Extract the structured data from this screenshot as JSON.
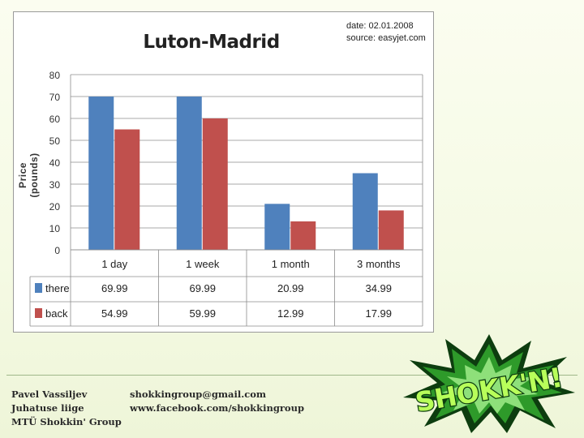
{
  "chart_data": {
    "type": "bar",
    "title": "Luton-Madrid",
    "date_label": "date: 02.01.2008",
    "source_label": "source: easyjet.com",
    "ylabel": "Price (pounds)",
    "xlabel": "",
    "ylim": [
      0,
      80
    ],
    "yticks": [
      0,
      10,
      20,
      30,
      40,
      50,
      60,
      70,
      80
    ],
    "grid": true,
    "categories": [
      "1 day",
      "1 week",
      "1 month",
      "3 months"
    ],
    "series": [
      {
        "name": "there",
        "color": "#4f81bd",
        "values": [
          69.99,
          69.99,
          20.99,
          34.99
        ],
        "labels": [
          "69.99",
          "69.99",
          "20.99",
          "34.99"
        ]
      },
      {
        "name": "back",
        "color": "#c0504d",
        "values": [
          54.99,
          59.99,
          12.99,
          17.99
        ],
        "labels": [
          "54.99",
          "59.99",
          "12.99",
          "17.99"
        ]
      }
    ],
    "legend": "data-table"
  },
  "footer": {
    "left_lines": [
      "Pavel Vassiljev",
      "Juhatuse liige",
      "MTÜ Shokkin' Group"
    ],
    "right_lines": [
      "shokkingroup@gmail.com",
      "www.facebook.com/shokkingroup"
    ]
  },
  "logo_text": "SHOKK'N!",
  "colors": {
    "background": "#f7fbe8",
    "logo_green": "#2e9a2a",
    "logo_dark": "#0d3d0f"
  }
}
